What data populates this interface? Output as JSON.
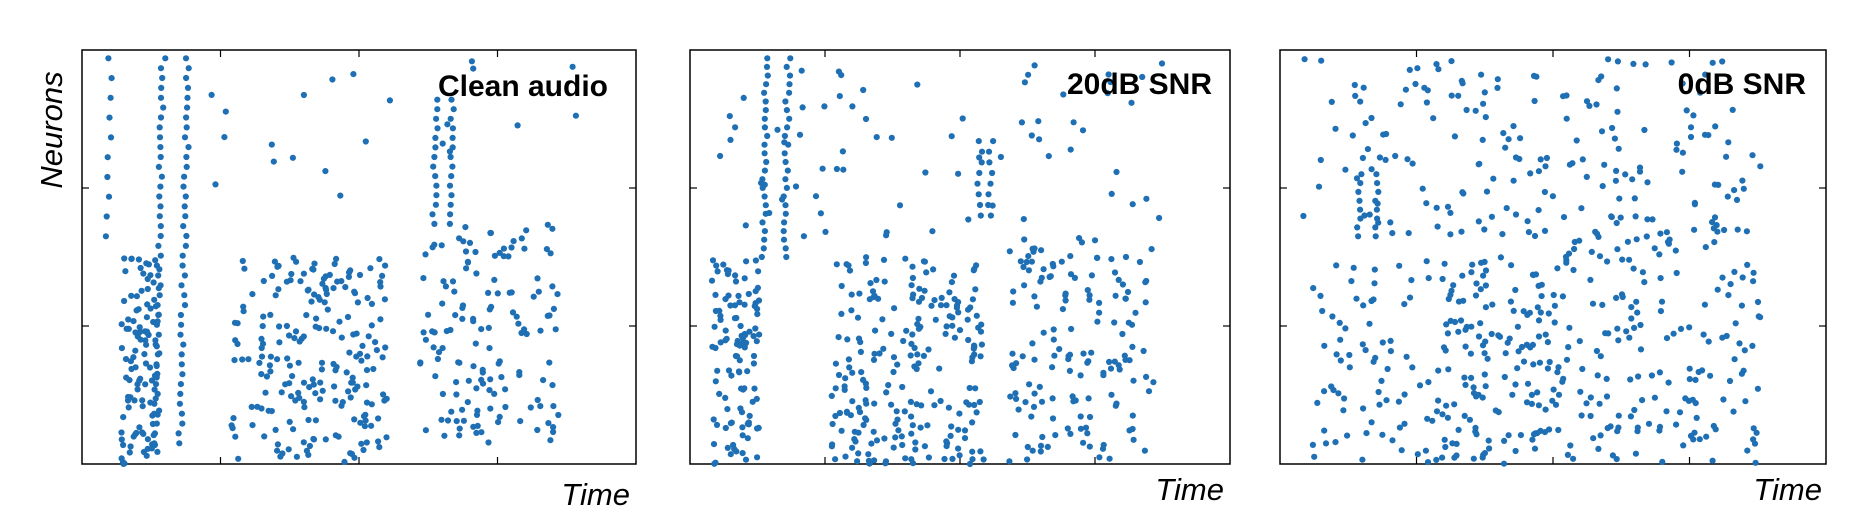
{
  "figure": {
    "ylabel": "Neurons",
    "xlabel": "Time",
    "dot_color": "#1f6fb4"
  },
  "chart_data": [
    {
      "type": "scatter",
      "title": "Clean audio",
      "xlabel": "Time",
      "ylabel": "Neurons",
      "xlim": [
        0,
        1
      ],
      "ylim": [
        0,
        1
      ],
      "grid": false,
      "seed": 11,
      "bursts": [
        {
          "x": 0.155,
          "y0": 0.05,
          "y1": 0.98,
          "dx": 0.045,
          "rows": 40,
          "cols": 2
        },
        {
          "x": 0.045,
          "y0": 0.55,
          "y1": 0.98,
          "dx": 0.01,
          "rows": 10,
          "cols": 1
        },
        {
          "x": 0.65,
          "y0": 0.58,
          "y1": 0.88,
          "dx": 0.03,
          "rows": 14,
          "cols": 2
        }
      ],
      "clusters": [
        {
          "x0": 0.07,
          "x1": 0.14,
          "y0": 0.0,
          "y1": 0.5,
          "n": 110
        },
        {
          "x0": 0.27,
          "x1": 0.55,
          "y0": 0.0,
          "y1": 0.5,
          "n": 210
        },
        {
          "x0": 0.61,
          "x1": 0.86,
          "y0": 0.05,
          "y1": 0.58,
          "n": 140
        },
        {
          "x0": 0.2,
          "x1": 0.9,
          "y0": 0.62,
          "y1": 0.98,
          "n": 22
        }
      ]
    },
    {
      "type": "scatter",
      "title": "20dB SNR",
      "xlabel": "Time",
      "ylabel": "Neurons",
      "xlim": [
        0,
        1
      ],
      "ylim": [
        0,
        1
      ],
      "grid": false,
      "seed": 29,
      "bursts": [
        {
          "x": 0.155,
          "y0": 0.5,
          "y1": 0.98,
          "dx": 0.04,
          "rows": 24,
          "cols": 2
        },
        {
          "x": 0.545,
          "y0": 0.6,
          "y1": 0.78,
          "dx": 0.02,
          "rows": 8,
          "cols": 2
        }
      ],
      "clusters": [
        {
          "x0": 0.04,
          "x1": 0.13,
          "y0": 0.0,
          "y1": 0.5,
          "n": 110
        },
        {
          "x0": 0.26,
          "x1": 0.55,
          "y0": 0.0,
          "y1": 0.5,
          "n": 220
        },
        {
          "x0": 0.59,
          "x1": 0.86,
          "y0": 0.0,
          "y1": 0.55,
          "n": 150
        },
        {
          "x0": 0.05,
          "x1": 0.88,
          "y0": 0.55,
          "y1": 0.98,
          "n": 70
        }
      ]
    },
    {
      "type": "scatter",
      "title": "0dB SNR",
      "xlabel": "Time",
      "ylabel": "Neurons",
      "xlim": [
        0,
        1
      ],
      "ylim": [
        0,
        1
      ],
      "grid": false,
      "seed": 47,
      "bursts": [
        {
          "x": 0.16,
          "y0": 0.55,
          "y1": 0.7,
          "dx": 0.03,
          "rows": 8,
          "cols": 2
        }
      ],
      "clusters": [
        {
          "x0": 0.04,
          "x1": 0.88,
          "y0": 0.55,
          "y1": 0.98,
          "n": 190
        },
        {
          "x0": 0.06,
          "x1": 0.3,
          "y0": 0.0,
          "y1": 0.5,
          "n": 80
        },
        {
          "x0": 0.3,
          "x1": 0.52,
          "y0": 0.0,
          "y1": 0.5,
          "n": 150
        },
        {
          "x0": 0.52,
          "x1": 0.88,
          "y0": 0.0,
          "y1": 0.55,
          "n": 160
        }
      ]
    }
  ]
}
